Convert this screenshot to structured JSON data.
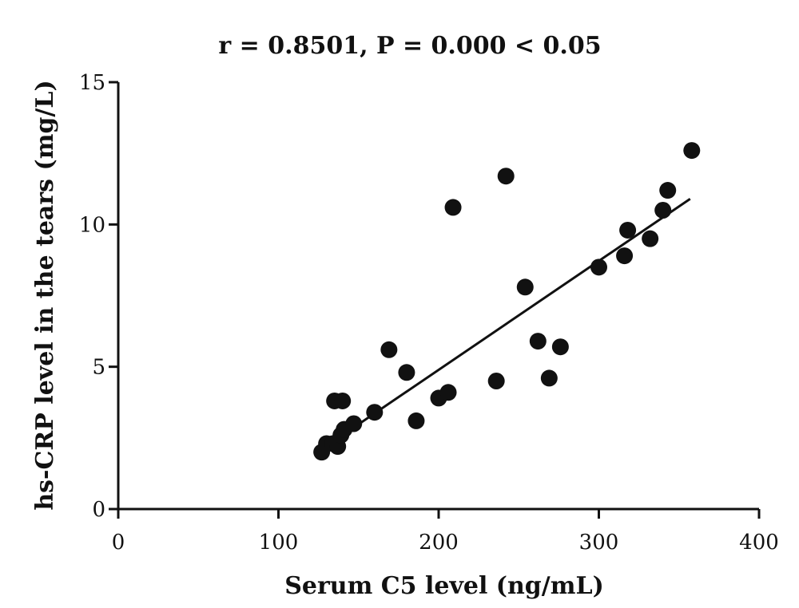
{
  "chart_data": {
    "type": "scatter",
    "title": "r = 0.8501, P = 0.000 < 0.05",
    "xlabel": "Serum C5 level (ng/mL)",
    "ylabel": "hs-CRP level in the tears (mg/L)",
    "xlim": [
      0,
      400
    ],
    "ylim": [
      0,
      15
    ],
    "x_ticks": [
      0,
      100,
      200,
      300,
      400
    ],
    "x_tick_labels": [
      "0",
      "100",
      "200",
      "300",
      "400"
    ],
    "y_ticks": [
      0,
      5,
      10,
      15
    ],
    "y_tick_labels": [
      "0",
      "5",
      "10",
      "15"
    ],
    "grid": false,
    "legend": "none",
    "marker_color": "#111111",
    "points": [
      {
        "x": 127,
        "y": 2.0
      },
      {
        "x": 130,
        "y": 2.3
      },
      {
        "x": 134,
        "y": 2.3
      },
      {
        "x": 137,
        "y": 2.2
      },
      {
        "x": 139,
        "y": 2.6
      },
      {
        "x": 141,
        "y": 2.8
      },
      {
        "x": 135,
        "y": 3.8
      },
      {
        "x": 140,
        "y": 3.8
      },
      {
        "x": 147,
        "y": 3.0
      },
      {
        "x": 160,
        "y": 3.4
      },
      {
        "x": 169,
        "y": 5.6
      },
      {
        "x": 180,
        "y": 4.8
      },
      {
        "x": 186,
        "y": 3.1
      },
      {
        "x": 200,
        "y": 3.9
      },
      {
        "x": 206,
        "y": 4.1
      },
      {
        "x": 209,
        "y": 10.6
      },
      {
        "x": 236,
        "y": 4.5
      },
      {
        "x": 242,
        "y": 11.7
      },
      {
        "x": 254,
        "y": 7.8
      },
      {
        "x": 262,
        "y": 5.9
      },
      {
        "x": 269,
        "y": 4.6
      },
      {
        "x": 276,
        "y": 5.7
      },
      {
        "x": 300,
        "y": 8.5
      },
      {
        "x": 316,
        "y": 8.9
      },
      {
        "x": 318,
        "y": 9.8
      },
      {
        "x": 332,
        "y": 9.5
      },
      {
        "x": 340,
        "y": 10.5
      },
      {
        "x": 343,
        "y": 11.2
      },
      {
        "x": 358,
        "y": 12.6
      }
    ],
    "trendline": {
      "x": [
        127,
        357
      ],
      "y": [
        2.1,
        10.9
      ]
    }
  }
}
